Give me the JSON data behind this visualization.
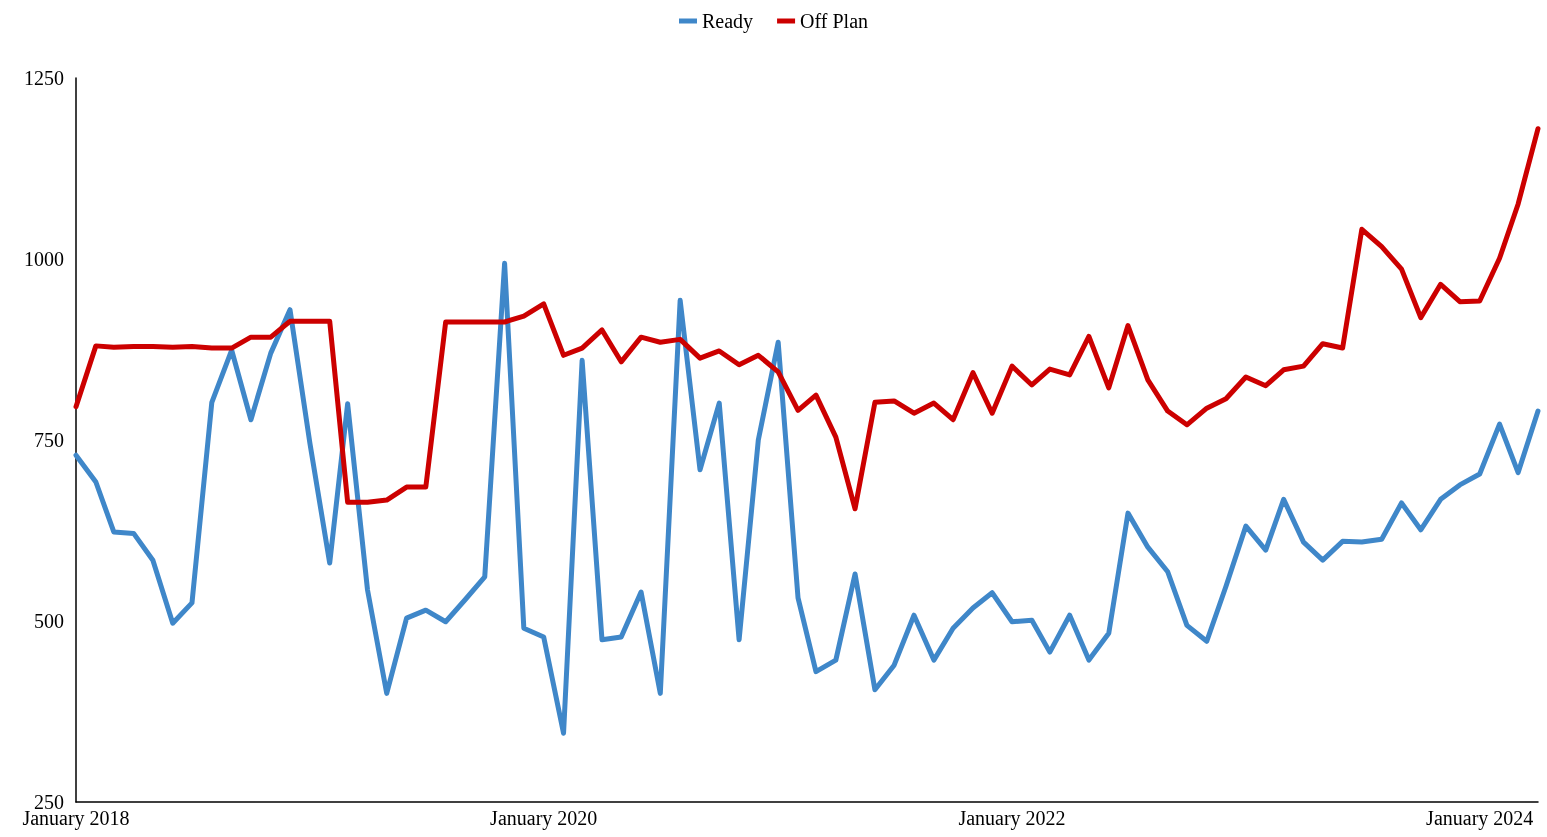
{
  "chart_data": {
    "type": "line",
    "x": [
      "2018-01",
      "2018-02",
      "2018-03",
      "2018-04",
      "2018-05",
      "2018-06",
      "2018-07",
      "2018-08",
      "2018-09",
      "2018-10",
      "2018-11",
      "2018-12",
      "2019-01",
      "2019-02",
      "2019-03",
      "2019-04",
      "2019-05",
      "2019-06",
      "2019-07",
      "2019-08",
      "2019-09",
      "2019-10",
      "2019-11",
      "2019-12",
      "2020-01",
      "2020-02",
      "2020-03",
      "2020-04",
      "2020-05",
      "2020-06",
      "2020-07",
      "2020-08",
      "2020-09",
      "2020-10",
      "2020-11",
      "2020-12",
      "2021-01",
      "2021-02",
      "2021-03",
      "2021-04",
      "2021-05",
      "2021-06",
      "2021-07",
      "2021-08",
      "2021-09",
      "2021-10",
      "2021-11",
      "2021-12",
      "2022-01",
      "2022-02",
      "2022-03",
      "2022-04",
      "2022-05",
      "2022-06",
      "2022-07",
      "2022-08",
      "2022-09",
      "2022-10",
      "2022-11",
      "2022-12",
      "2023-01",
      "2023-02",
      "2023-03",
      "2023-04",
      "2023-05",
      "2023-06",
      "2023-07",
      "2023-08",
      "2023-09",
      "2023-10",
      "2023-11",
      "2023-12",
      "2024-01",
      "2024-02",
      "2024-03",
      "2024-04"
    ],
    "series": [
      {
        "name": "Ready",
        "color": "#3f87c9",
        "values": [
          729,
          692,
          623,
          621,
          584,
          497,
          525,
          802,
          874,
          778,
          870,
          930,
          746,
          580,
          800,
          543,
          400,
          504,
          515,
          499,
          530,
          561,
          994,
          490,
          478,
          345,
          860,
          474,
          478,
          540,
          400,
          943,
          709,
          801,
          474,
          750,
          885,
          532,
          430,
          446,
          565,
          405,
          439,
          508,
          446,
          490,
          518,
          539,
          499,
          501,
          457,
          508,
          446,
          483,
          649,
          602,
          568,
          494,
          472,
          548,
          631,
          598,
          668,
          609,
          584,
          610,
          609,
          613,
          663,
          626,
          668,
          688,
          703,
          772,
          705,
          790
        ]
      },
      {
        "name": "Off Plan",
        "color": "#cc0000",
        "values": [
          796,
          880,
          878,
          879,
          879,
          878,
          879,
          877,
          877,
          892,
          892,
          914,
          914,
          914,
          664,
          664,
          667,
          685,
          685,
          913,
          913,
          913,
          913,
          921,
          938,
          867,
          877,
          902,
          858,
          892,
          885,
          889,
          863,
          873,
          854,
          867,
          844,
          791,
          812,
          754,
          655,
          802,
          804,
          787,
          801,
          778,
          843,
          787,
          852,
          826,
          848,
          840,
          893,
          822,
          908,
          833,
          790,
          771,
          794,
          807,
          837,
          825,
          847,
          852,
          883,
          877,
          1041,
          1017,
          986,
          919,
          965,
          941,
          942,
          1001,
          1076,
          1180
        ]
      }
    ],
    "xlim": [
      "2018-01",
      "2024-04"
    ],
    "xticks": [
      {
        "value": "2018-01",
        "label": "January 2018"
      },
      {
        "value": "2020-01",
        "label": "January 2020"
      },
      {
        "value": "2022-01",
        "label": "January 2022"
      },
      {
        "value": "2024-01",
        "label": "January 2024"
      }
    ],
    "ylim": [
      250,
      1250
    ],
    "yticks": [
      250,
      500,
      750,
      1000,
      1250
    ],
    "grid": false,
    "legend": "top",
    "marker": "none",
    "line_style": "solid"
  }
}
